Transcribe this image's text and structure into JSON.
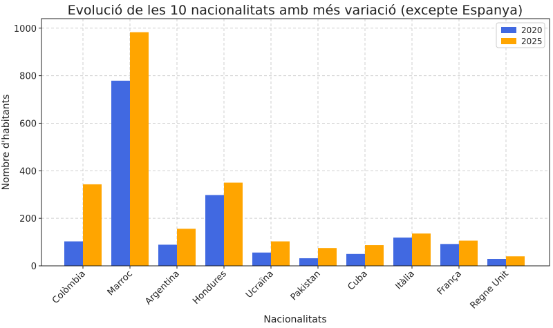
{
  "chart_data": {
    "type": "bar",
    "title": "Evolució de les 10 nacionalitats amb més variació (excepte Espanya)",
    "xlabel": "Nacionalitats",
    "ylabel": "Nombre d'habitants",
    "categories": [
      "Colòmbia",
      "Marroc",
      "Argentina",
      "Hondures",
      "Ucraïna",
      "Pakistan",
      "Cuba",
      "Itàlia",
      "França",
      "Regne Unit"
    ],
    "series": [
      {
        "name": "2020",
        "color": "#4169E1",
        "values": [
          103,
          779,
          89,
          298,
          56,
          32,
          50,
          119,
          92,
          29
        ]
      },
      {
        "name": "2025",
        "color": "#FFA500",
        "values": [
          343,
          983,
          156,
          350,
          103,
          75,
          87,
          136,
          106,
          40
        ]
      }
    ],
    "ylim": [
      0,
      1040
    ],
    "yticks": [
      0,
      200,
      400,
      600,
      800,
      1000
    ],
    "grid": true,
    "legend_position": "top-right"
  }
}
